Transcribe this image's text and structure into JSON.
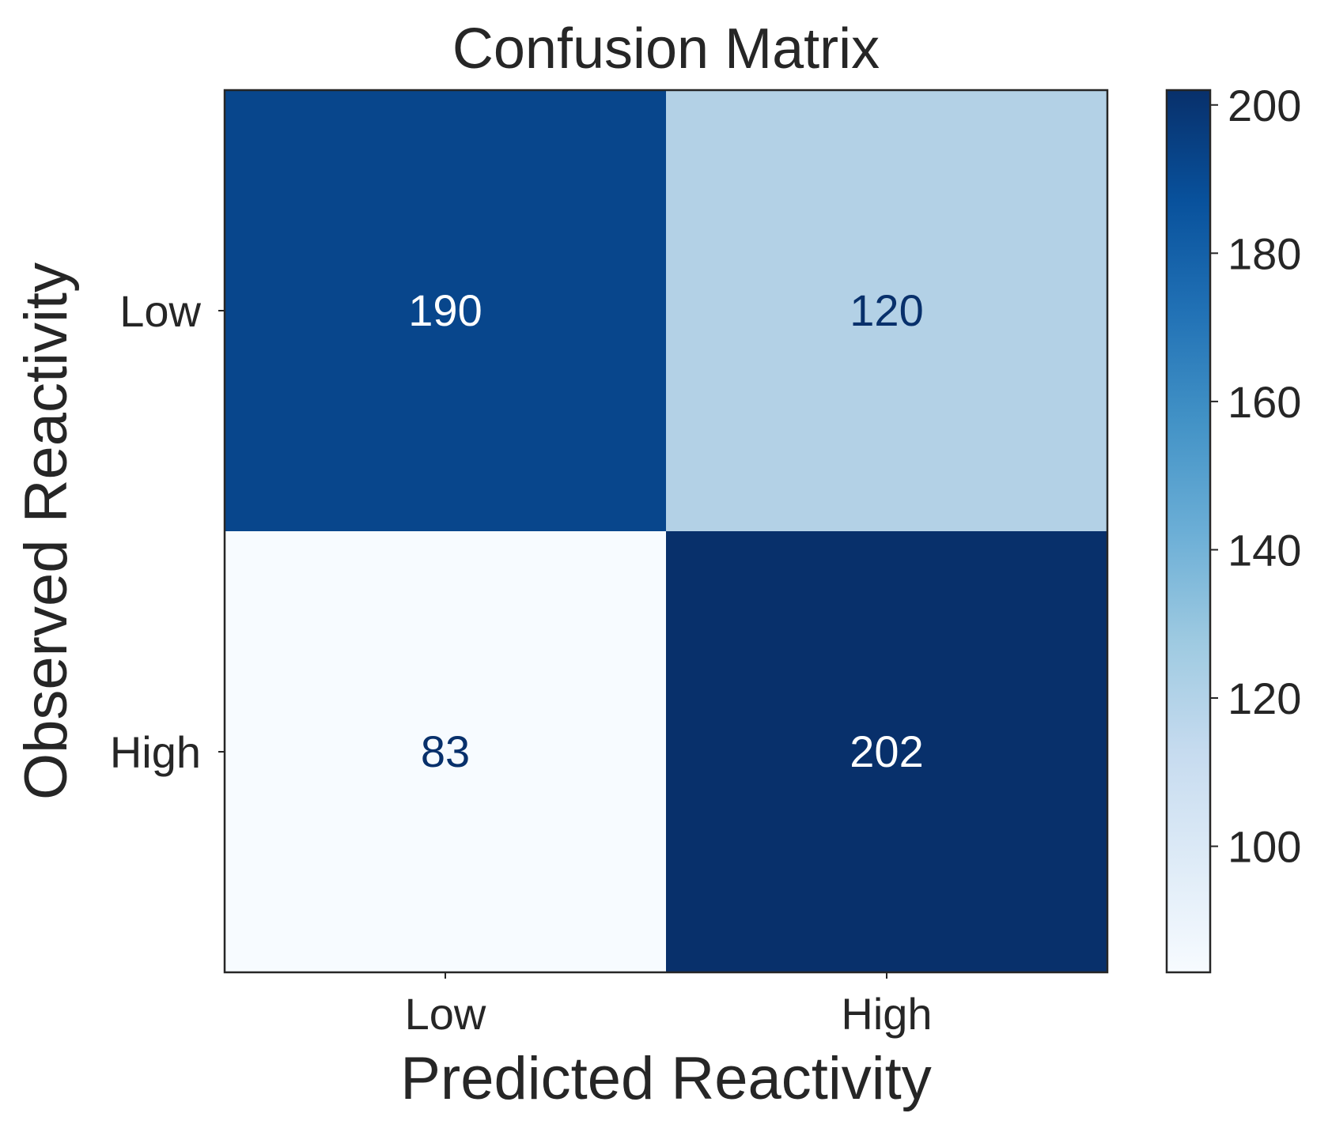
{
  "chart_data": {
    "type": "heatmap",
    "title": "Confusion Matrix",
    "xlabel": "Predicted Reactivity",
    "ylabel": "Observed Reactivity",
    "x_categories": [
      "Low",
      "High"
    ],
    "y_categories": [
      "Low",
      "High"
    ],
    "values": [
      [
        190,
        120
      ],
      [
        83,
        202
      ]
    ],
    "colormap": "Blues",
    "colorbar": {
      "min": 83,
      "max": 202,
      "ticks": [
        100,
        120,
        140,
        160,
        180,
        200
      ]
    },
    "grid": false
  },
  "colors": {
    "cell_190": "#08468c",
    "cell_120": "#b3d1e6",
    "cell_83": "#f7fbff",
    "cell_202": "#08306b",
    "text_dark": "#08306b",
    "text_light": "#ffffff",
    "axis": "#262626"
  }
}
